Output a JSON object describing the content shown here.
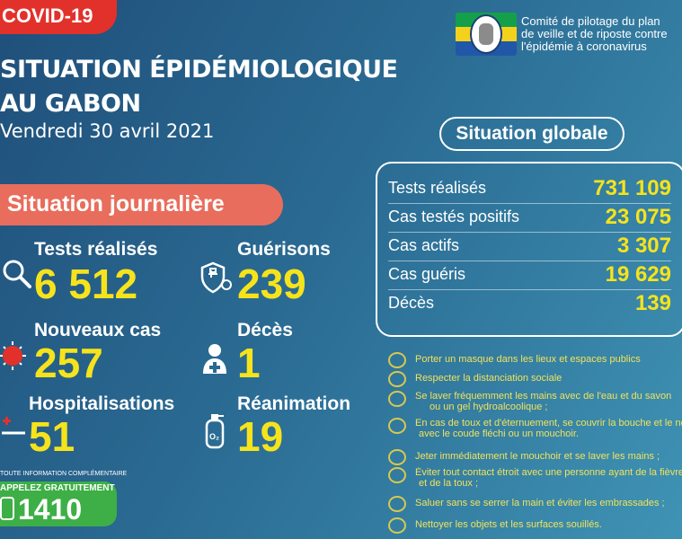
{
  "header": {
    "badge": "COVID-19",
    "title_line1": "SITUATION ÉPIDÉMIOLOGIQUE",
    "title_line2": "AU GABON",
    "date": "Vendredi 30 avril 2021",
    "committee": [
      "Comité de pilotage du plan",
      "de veille et de riposte contre",
      "l'épidémie à coronavirus"
    ]
  },
  "daily": {
    "title": "Situation journalière",
    "tests": {
      "label": "Tests réalisés",
      "value": "6 512"
    },
    "recoveries": {
      "label": "Guérisons",
      "value": "239"
    },
    "new_cases": {
      "label": "Nouveaux cas",
      "value": "257"
    },
    "deaths": {
      "label": "Décès",
      "value": "1"
    },
    "hospitalisations": {
      "label": "Hospitalisations",
      "value": "51"
    },
    "icu": {
      "label": "Réanimation",
      "value": "19"
    }
  },
  "global": {
    "title": "Situation globale",
    "rows": [
      {
        "label": "Tests réalisés",
        "value": "731 109"
      },
      {
        "label": "Cas testés positifs",
        "value": "23 075"
      },
      {
        "label": "Cas actifs",
        "value": "3 307"
      },
      {
        "label": "Cas guéris",
        "value": "19 629"
      },
      {
        "label": "Décès",
        "value": "139"
      }
    ]
  },
  "advice": [
    "Porter un masque dans les lieux et espaces publics",
    "Respecter la distanciation sociale",
    "Se laver fréquemment les mains avec de l'eau et du savon",
    "ou un gel hydroalcoolique ;",
    "En cas de toux et d'éternuement, se couvrir la bouche et le nez",
    "avec le coude fléchi ou un mouchoir.",
    "Jeter immédiatement le mouchoir et se laver les mains ;",
    "Éviter tout contact étroit avec une personne ayant de la fièvre",
    "et de la toux ;",
    "Saluer sans se serrer la main et éviter les embrassades ;",
    "Nettoyer les objets et les surfaces souillés."
  ],
  "hotline": {
    "info": "TOUTE INFORMATION COMPLÉMENTAIRE",
    "label": "APPELEZ GRATUITEMENT",
    "number": "1410"
  },
  "colors": {
    "accent_yellow": "#f6e31b",
    "badge_red": "#e2312b",
    "daily_pill": "#e96d5c",
    "hotline_green": "#3daf46"
  }
}
